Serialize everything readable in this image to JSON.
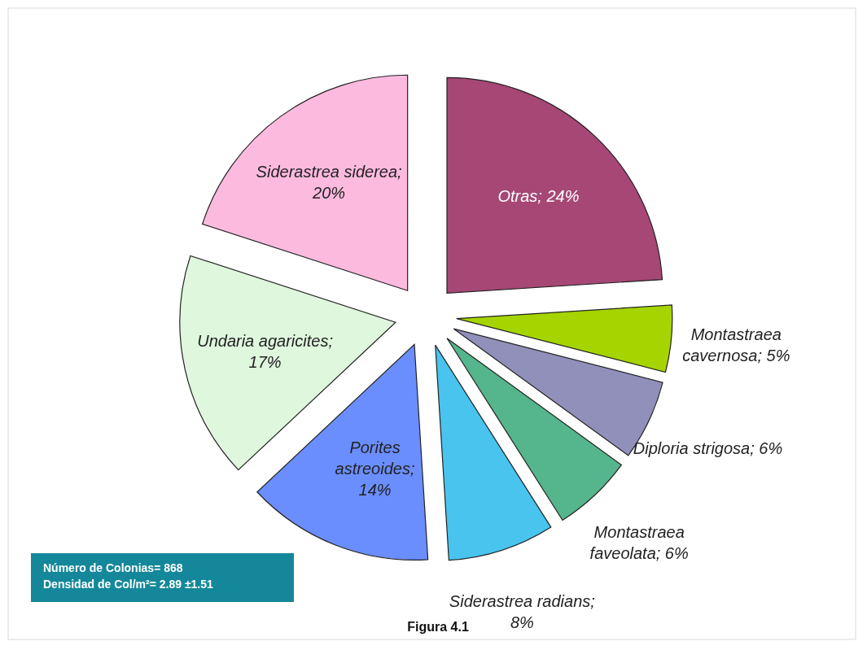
{
  "chart_data": {
    "type": "pie",
    "categories": [
      "Otras; 24%",
      "Montastraea cavernosa; 5%",
      "Diploria strigosa; 6%",
      "Montastraea faveolata; 6%",
      "Siderastrea radians; 8%",
      "Porites astreoides; 14%",
      "Undaria agaricites; 17%",
      "Siderastrea siderea; 20%"
    ],
    "values": [
      24,
      5,
      6,
      6,
      8,
      14,
      17,
      20
    ],
    "colors": [
      "#a64775",
      "#a6d400",
      "#9090bb",
      "#55b58c",
      "#48c4ee",
      "#6b8eff",
      "#dff7dd",
      "#fdbadf"
    ],
    "legend": false,
    "annotations": [
      "Número de Colonias= 868",
      "Densidad de Col/m²= 2.89 ±1.51",
      "Figura 4.1"
    ]
  }
}
